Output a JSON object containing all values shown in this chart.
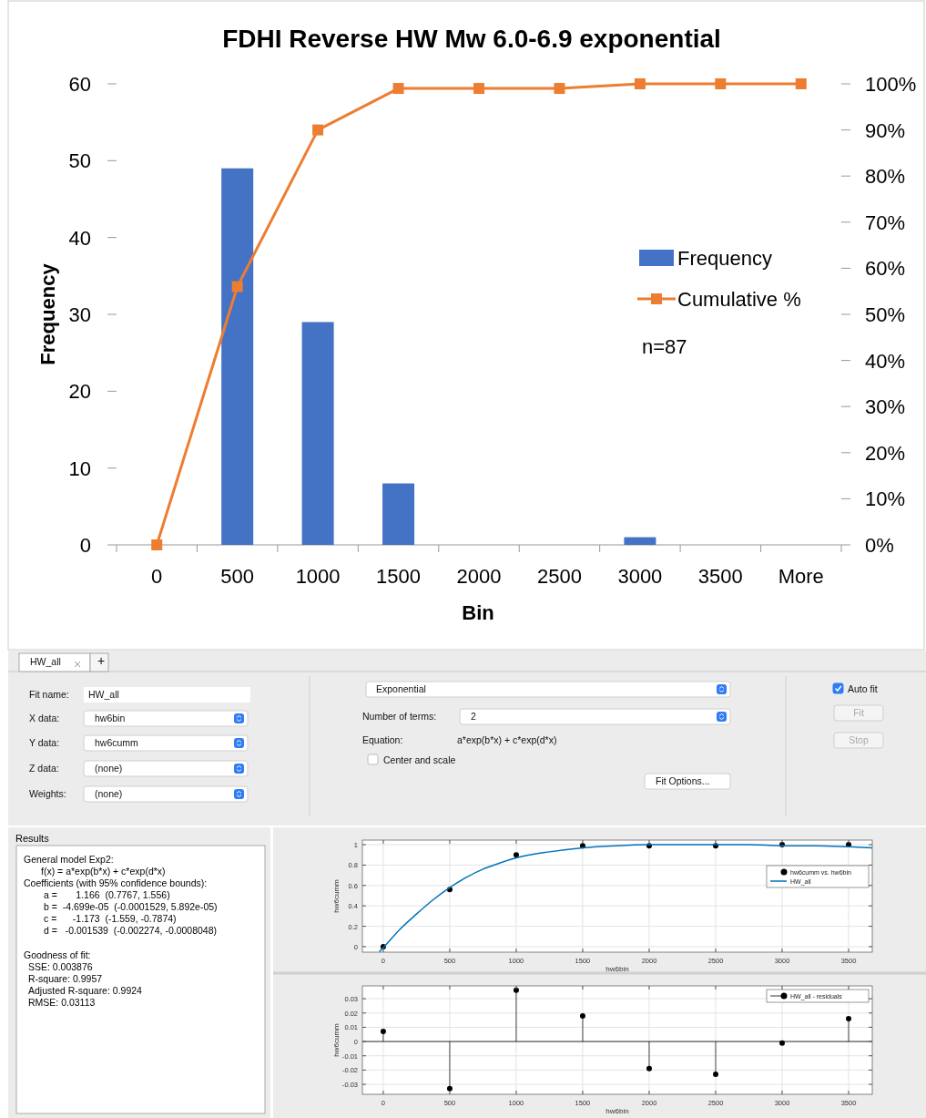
{
  "chart_data": [
    {
      "type": "bar",
      "title": "FDHI Reverse HW Mw 6.0-6.9 exponential",
      "xlabel": "Bin",
      "ylabel": "Frequency",
      "categories": [
        "0",
        "500",
        "1000",
        "1500",
        "2000",
        "2500",
        "3000",
        "3500",
        "More"
      ],
      "series": [
        {
          "name": "Frequency",
          "type": "bar",
          "color": "#4472c4",
          "values": [
            0,
            49,
            29,
            8,
            0,
            0,
            1,
            0,
            0
          ]
        },
        {
          "name": "Cumulative %",
          "type": "line",
          "axis": "y2",
          "color": "#ed7d31",
          "marker": "square",
          "values": [
            0,
            56,
            90,
            99,
            99,
            99,
            100,
            100,
            100
          ]
        }
      ],
      "ylim": [
        0,
        60
      ],
      "yticks": [
        0,
        10,
        20,
        30,
        40,
        50,
        60
      ],
      "y2lim": [
        0,
        100
      ],
      "y2ticks": [
        {
          "value": 0,
          "label": "0%"
        },
        {
          "value": 10,
          "label": "10%"
        },
        {
          "value": 20,
          "label": "20%"
        },
        {
          "value": 30,
          "label": "30%"
        },
        {
          "value": 40,
          "label": "40%"
        },
        {
          "value": 50,
          "label": "50%"
        },
        {
          "value": 60,
          "label": "60%"
        },
        {
          "value": 70,
          "label": "70%"
        },
        {
          "value": 80,
          "label": "80%"
        },
        {
          "value": 90,
          "label": "90%"
        },
        {
          "value": 100,
          "label": "100%"
        }
      ],
      "legend": "right",
      "annotations": [
        "n=87"
      ]
    },
    {
      "type": "other",
      "annotations": [
        "HW_all",
        "+",
        "Fit name:",
        "HW_all",
        "X data:",
        "hw6bin",
        "Y data:",
        "hw6cumm",
        "Z data:",
        "(none)",
        "Weights:",
        "(none)",
        "Exponential",
        "Number of terms:",
        "2",
        "Equation:",
        "a*exp(b*x) + c*exp(d*x)",
        "Center and scale",
        "Fit Options...",
        "Auto fit",
        "Fit",
        "Stop"
      ]
    },
    {
      "type": "other",
      "title": "Results",
      "annotations": [
        "General model Exp2:",
        "f(x) = a*exp(b*x) + c*exp(d*x)",
        "Coefficients (with 95% confidence bounds):",
        "a =       1.166  (0.7767, 1.556)",
        "b =  -4.699e-05  (-0.0001529, 5.892e-05)",
        "c =      -1.173  (-1.559, -0.7874)",
        "d =   -0.001539  (-0.002274, -0.0008048)",
        "Goodness of fit:",
        "SSE: 0.003876",
        "R-square: 0.9957",
        "Adjusted R-square: 0.9924",
        "RMSE: 0.03113"
      ]
    },
    {
      "type": "scatter",
      "xlabel": "hw6bin",
      "ylabel": "hw6cumm",
      "xlim": [
        -157,
        3678
      ],
      "xticks": [
        0,
        500,
        1000,
        1500,
        2000,
        2500,
        3000,
        3500
      ],
      "ylim": [
        -0.054,
        1.045
      ],
      "yticks": [
        0,
        0.2,
        0.4,
        0.6,
        0.8,
        1
      ],
      "grid": true,
      "legend": "right",
      "series": [
        {
          "name": "hw6cumm vs. hw6bin",
          "type": "scatter",
          "color": "#000000",
          "marker": "circle",
          "x": [
            0,
            500,
            1000,
            1500,
            2000,
            2500,
            3000,
            3500
          ],
          "values": [
            0,
            0.56,
            0.9,
            0.99,
            0.99,
            0.99,
            1,
            1
          ]
        },
        {
          "name": "HW_all",
          "type": "line",
          "color": "#0072bd",
          "x": [
            -30,
            0,
            125,
            250,
            375,
            500,
            625,
            750,
            875,
            1000,
            1250,
            1500,
            1750,
            2000,
            2250,
            2500,
            2750,
            3000,
            3250,
            3500,
            3678
          ],
          "values": [
            -0.05,
            -0.01,
            0.17,
            0.32,
            0.46,
            0.58,
            0.68,
            0.76,
            0.82,
            0.87,
            0.93,
            0.97,
            0.99,
            1.0,
            1.0,
            1.0,
            1.0,
            0.99,
            0.99,
            0.98,
            0.97
          ]
        }
      ]
    },
    {
      "type": "lollipop",
      "xlabel": "hw6bin",
      "ylabel": "hw6cumm",
      "xlim": [
        -157,
        3678
      ],
      "xticks": [
        0,
        500,
        1000,
        1500,
        2000,
        2500,
        3000,
        3500
      ],
      "ylim": [
        -0.037,
        0.039
      ],
      "yticks": [
        -0.03,
        -0.02,
        -0.01,
        0,
        0.01,
        0.02,
        0.03
      ],
      "grid": true,
      "legend": "top right",
      "ref_lines": [
        {
          "axis": "y",
          "value": 0,
          "color": "#000000"
        }
      ],
      "series": [
        {
          "name": "HW_all - residuals",
          "type": "lollipop",
          "color": "#000000",
          "x": [
            0,
            500,
            1000,
            1500,
            2000,
            2500,
            3000,
            3500
          ],
          "values": [
            0.007,
            -0.033,
            0.036,
            0.018,
            -0.019,
            -0.023,
            -0.001,
            0.016
          ]
        }
      ]
    }
  ]
}
